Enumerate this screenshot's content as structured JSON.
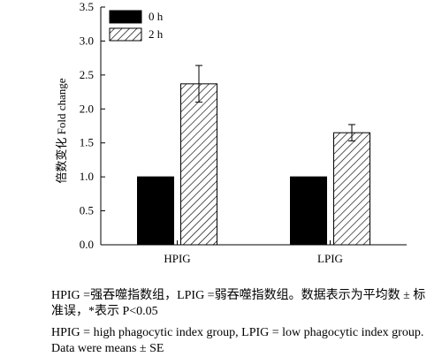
{
  "chart_data": {
    "type": "bar",
    "categories": [
      "HPIG",
      "LPIG"
    ],
    "series": [
      {
        "name": "0 h",
        "values": [
          1.0,
          1.0
        ],
        "errors": [
          null,
          null
        ],
        "pattern": "solid",
        "color": "#000000"
      },
      {
        "name": "2 h",
        "values": [
          2.37,
          1.65
        ],
        "errors": [
          0.27,
          0.12
        ],
        "pattern": "hatched",
        "color": "#000000"
      }
    ],
    "ylabel": "倍数变化 Fold change",
    "xlabel": "",
    "ylim": [
      0,
      3.5
    ],
    "yticks": [
      "0.0",
      "0.5",
      "1.0",
      "1.5",
      "2.0",
      "2.5",
      "3.0",
      "3.5"
    ],
    "legend": "top-left",
    "grid": false
  },
  "caption": {
    "cn_line1": "HPIG =强吞噬指数组，LPIG =弱吞噬指数组。数据表示为平均数 ± 标",
    "cn_line2": "准误，*表示 P<0.05",
    "en_line1": "HPIG = high phagocytic index group, LPIG = low phagocytic index group.",
    "en_line2": "Data were means ± SE"
  }
}
